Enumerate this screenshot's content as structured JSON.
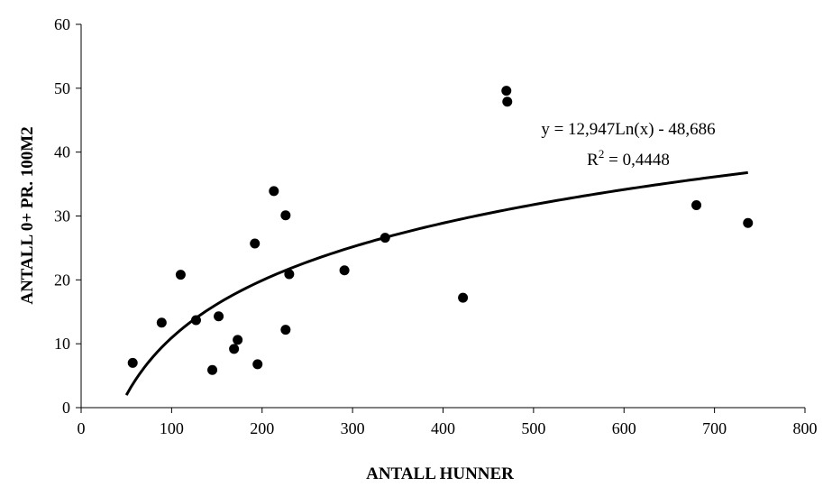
{
  "chart_data": {
    "type": "scatter",
    "title": "",
    "xlabel": "ANTALL HUNNER",
    "ylabel": "ANTALL 0+ PR. 100M2",
    "xlim": [
      0,
      800
    ],
    "ylim": [
      0,
      60
    ],
    "xticks": [
      0,
      100,
      200,
      300,
      400,
      500,
      600,
      700,
      800
    ],
    "yticks": [
      0,
      10,
      20,
      30,
      40,
      50,
      60
    ],
    "x_tick_labels": [
      "0",
      "100",
      "200",
      "300",
      "400",
      "500",
      "600",
      "700",
      "800"
    ],
    "y_tick_labels": [
      "0",
      "10",
      "20",
      "30",
      "40",
      "50",
      "60"
    ],
    "grid": false,
    "legend": "none",
    "points": [
      {
        "x": 57,
        "y": 7
      },
      {
        "x": 89,
        "y": 13.3
      },
      {
        "x": 110,
        "y": 20.8
      },
      {
        "x": 127,
        "y": 13.7
      },
      {
        "x": 145,
        "y": 5.9
      },
      {
        "x": 152,
        "y": 14.3
      },
      {
        "x": 169,
        "y": 9.2
      },
      {
        "x": 173,
        "y": 10.6
      },
      {
        "x": 192,
        "y": 25.7
      },
      {
        "x": 195,
        "y": 6.8
      },
      {
        "x": 213,
        "y": 33.9
      },
      {
        "x": 226,
        "y": 30.1
      },
      {
        "x": 226,
        "y": 12.2
      },
      {
        "x": 230,
        "y": 20.9
      },
      {
        "x": 291,
        "y": 21.5
      },
      {
        "x": 336,
        "y": 26.6
      },
      {
        "x": 422,
        "y": 17.2
      },
      {
        "x": 470,
        "y": 49.6
      },
      {
        "x": 471,
        "y": 47.9
      },
      {
        "x": 680,
        "y": 31.7
      },
      {
        "x": 737,
        "y": 28.9
      }
    ],
    "trendline": {
      "type": "logarithmic",
      "a": 12.947,
      "b": -48.686,
      "x_range": [
        50,
        737
      ],
      "equation_label": "y = 12,947Ln(x) - 48,686",
      "r2_label_prefix": "R",
      "r2_label_exponent": "2",
      "r2_label_value": " = 0,4448"
    },
    "colors": {
      "marker": "#000000",
      "line": "#000000",
      "axis": "#000000"
    }
  }
}
